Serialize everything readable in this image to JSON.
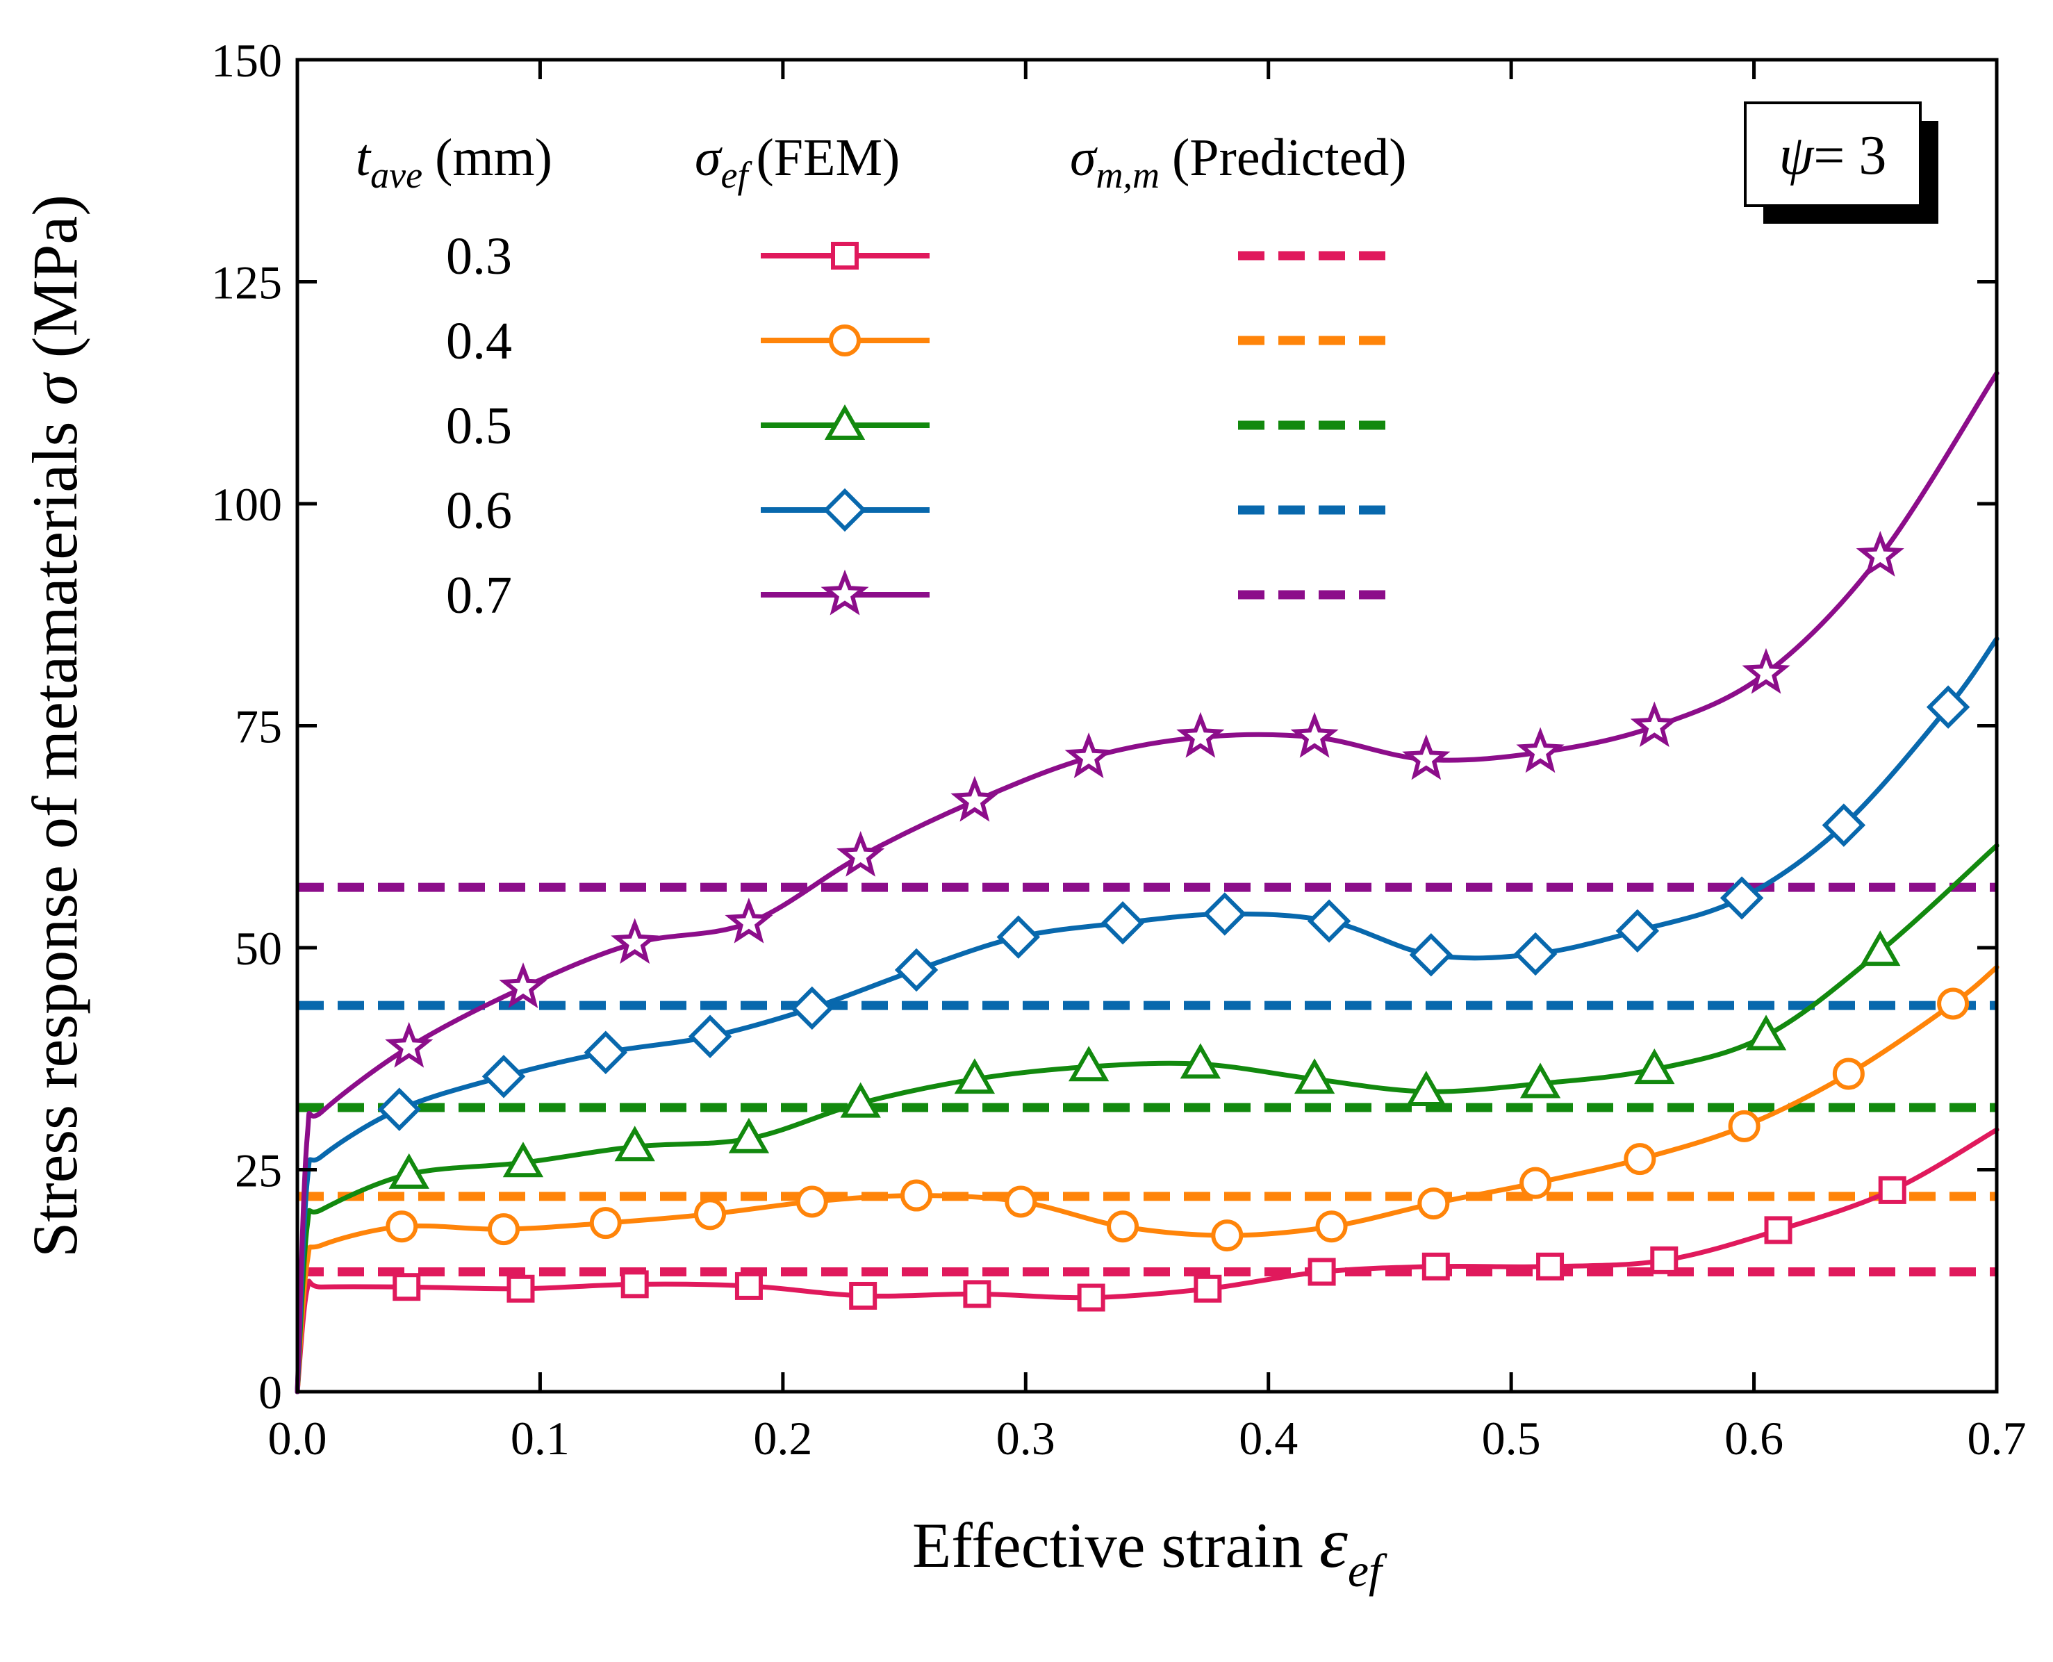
{
  "chart_data": {
    "type": "line",
    "xlabel": "Effective strain",
    "xlabel_symbol": "ε",
    "xlabel_sub": "ef",
    "ylabel": "Stress response of metamaterials",
    "ylabel_symbol": "σ",
    "ylabel_unit": "(MPa)",
    "xlim": [
      0,
      0.7
    ],
    "ylim": [
      0,
      150
    ],
    "xticks": [
      0,
      0.1,
      0.2,
      0.3,
      0.4,
      0.5,
      0.6,
      0.7
    ],
    "xtick_labels": [
      "0.0",
      "0.1",
      "0.2",
      "0.3",
      "0.4",
      "0.5",
      "0.6",
      "0.7"
    ],
    "yticks": [
      0,
      25,
      50,
      75,
      100,
      125,
      150
    ],
    "ytick_labels": [
      "0",
      "25",
      "50",
      "75",
      "100",
      "125",
      "150"
    ],
    "annotation": {
      "symbol": "ψ",
      "text": "= 3"
    },
    "legend": {
      "col1_symbol": "t",
      "col1_sub": "ave",
      "col1_text": "(mm)",
      "col2_symbol": "σ",
      "col2_sub": "ef",
      "col2_text": "(FEM)",
      "col3_symbol": "σ",
      "col3_sub": "m,m",
      "col3_text": "(Predicted)"
    },
    "series": [
      {
        "name": "0.3",
        "color": "#e0195c",
        "marker": "square",
        "predicted": 13.5,
        "x": [
          0,
          0.004,
          0.01,
          0.045,
          0.092,
          0.139,
          0.186,
          0.233,
          0.28,
          0.327,
          0.375,
          0.422,
          0.469,
          0.516,
          0.563,
          0.61,
          0.657,
          0.7
        ],
        "y": [
          0,
          11.5,
          11.8,
          11.8,
          11.6,
          12.1,
          11.9,
          10.8,
          11.0,
          10.6,
          11.6,
          13.5,
          14.1,
          14.1,
          14.8,
          18.2,
          22.7,
          29.5
        ]
      },
      {
        "name": "0.4",
        "color": "#ff8409",
        "marker": "circle",
        "predicted": 22,
        "x": [
          0,
          0.004,
          0.01,
          0.043,
          0.085,
          0.127,
          0.17,
          0.212,
          0.255,
          0.298,
          0.34,
          0.383,
          0.426,
          0.468,
          0.51,
          0.553,
          0.596,
          0.639,
          0.682,
          0.7
        ],
        "y": [
          0,
          14.5,
          16.5,
          18.6,
          18.3,
          19.0,
          20.0,
          21.4,
          22.1,
          21.4,
          18.6,
          17.6,
          18.6,
          21.2,
          23.5,
          26.2,
          29.9,
          35.8,
          43.7,
          47.8
        ]
      },
      {
        "name": "0.5",
        "color": "#12890e",
        "marker": "triangle",
        "predicted": 32,
        "x": [
          0,
          0.004,
          0.01,
          0.046,
          0.093,
          0.139,
          0.186,
          0.232,
          0.279,
          0.326,
          0.372,
          0.419,
          0.465,
          0.512,
          0.559,
          0.605,
          0.652,
          0.7
        ],
        "y": [
          0,
          18.5,
          20.5,
          24.5,
          25.8,
          27.6,
          28.5,
          32.5,
          35.2,
          36.6,
          36.9,
          35.2,
          33.8,
          34.7,
          36.3,
          40.1,
          49.6,
          61.5
        ]
      },
      {
        "name": "0.6",
        "color": "#0868ad",
        "marker": "diamond",
        "predicted": 43.5,
        "x": [
          0,
          0.004,
          0.01,
          0.042,
          0.085,
          0.127,
          0.17,
          0.212,
          0.255,
          0.297,
          0.34,
          0.382,
          0.425,
          0.467,
          0.51,
          0.552,
          0.595,
          0.637,
          0.68,
          0.7
        ],
        "y": [
          0,
          23.5,
          26.5,
          31.8,
          35.5,
          38.2,
          40.0,
          43.2,
          47.5,
          51.2,
          52.8,
          53.8,
          53.0,
          49.2,
          49.3,
          51.9,
          55.6,
          63.8,
          77.1,
          84.8
        ]
      },
      {
        "name": "0.7",
        "color": "#8c0d8a",
        "marker": "star",
        "predicted": 56.8,
        "x": [
          0,
          0.004,
          0.01,
          0.046,
          0.093,
          0.139,
          0.186,
          0.232,
          0.279,
          0.326,
          0.372,
          0.419,
          0.465,
          0.512,
          0.559,
          0.605,
          0.652,
          0.7
        ],
        "y": [
          0,
          28.5,
          31.5,
          38.8,
          45.5,
          50.5,
          52.8,
          60.3,
          66.5,
          71.4,
          73.7,
          73.7,
          71.2,
          72.0,
          74.9,
          80.9,
          94.1,
          114.7
        ]
      }
    ]
  }
}
